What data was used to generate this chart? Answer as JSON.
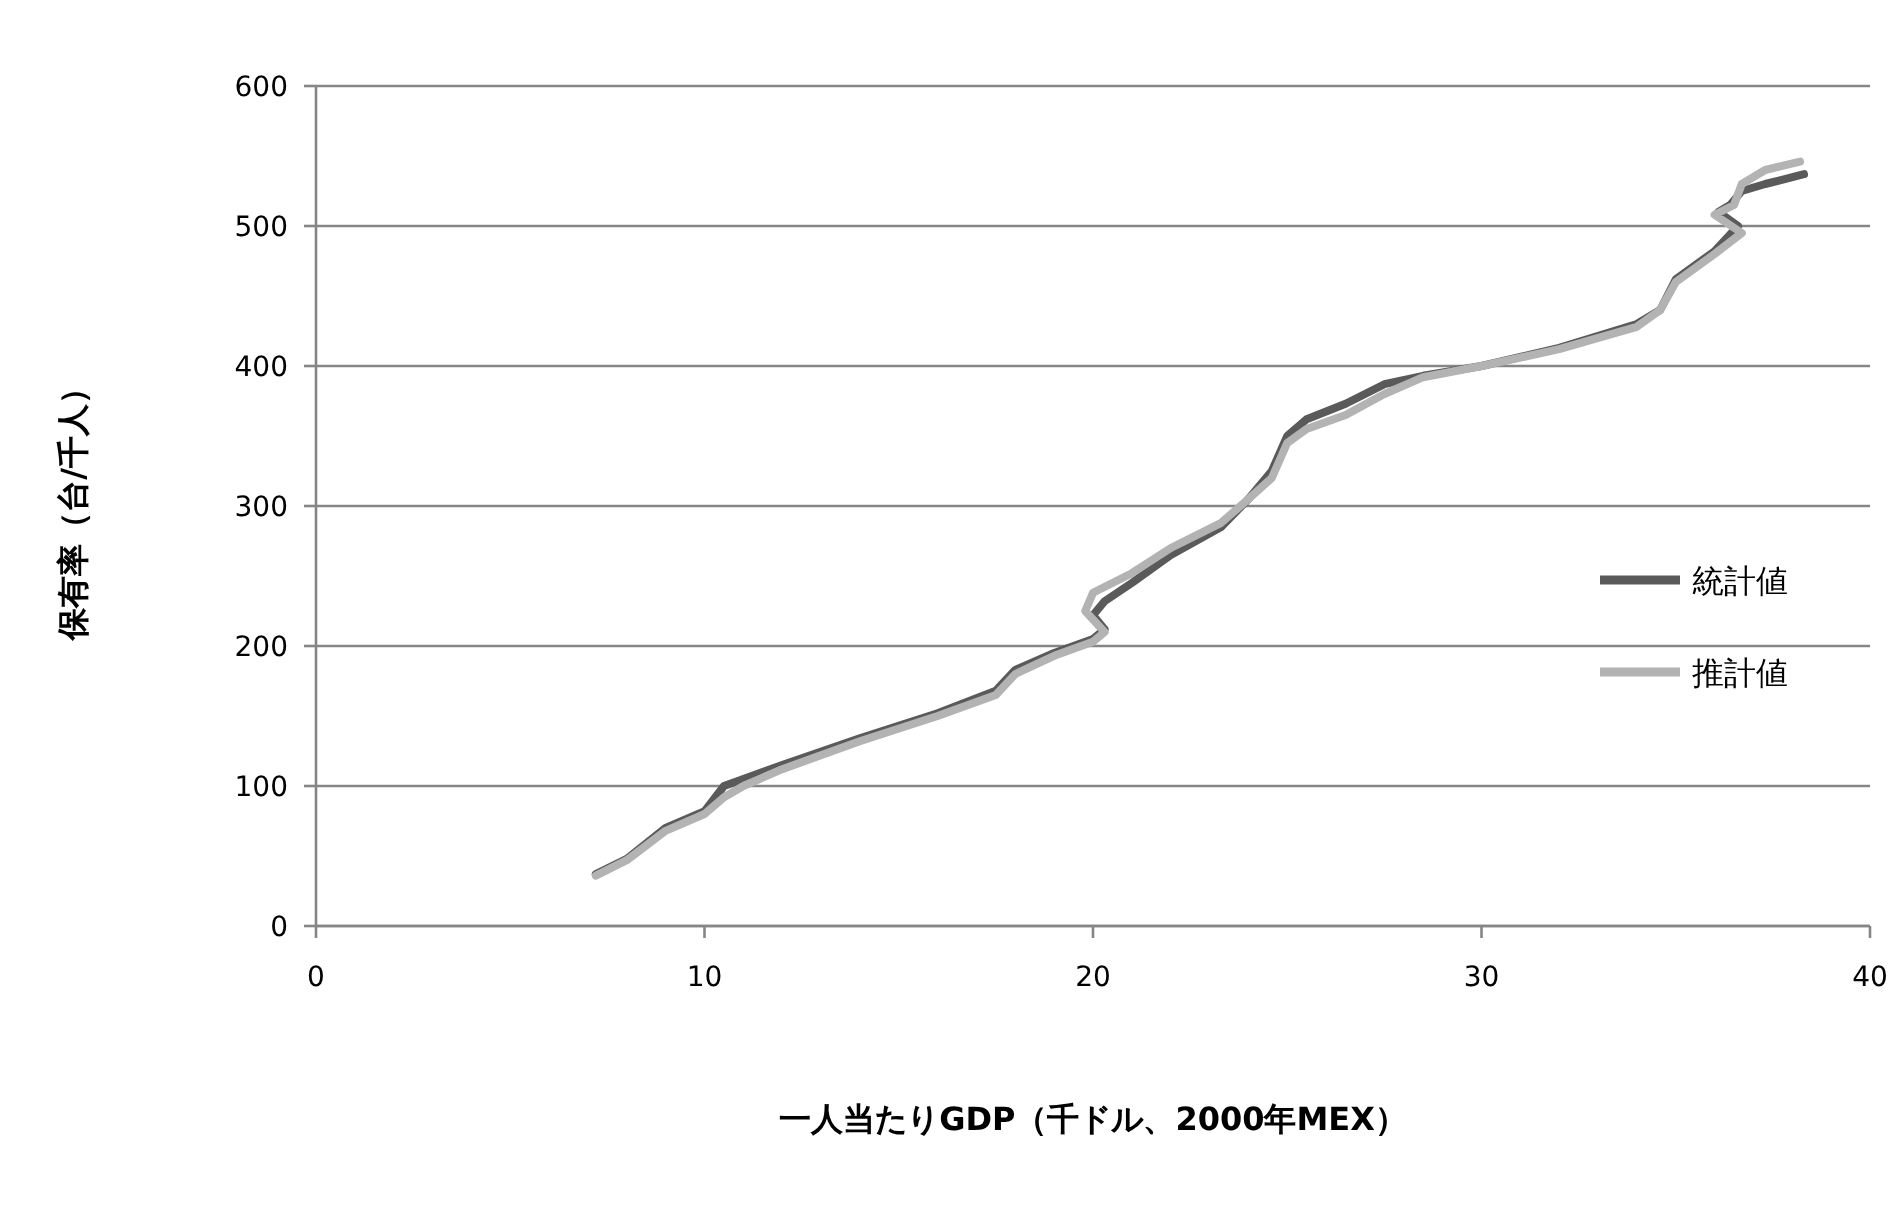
{
  "chart_data": {
    "type": "line",
    "xlabel": "一人当たりGDP（千ドル、2000年MEX）",
    "ylabel": "保有率（台/千人）",
    "xlim": [
      0,
      40
    ],
    "ylim": [
      0,
      600
    ],
    "xticks": [
      0,
      10,
      20,
      30,
      40
    ],
    "yticks": [
      0,
      100,
      200,
      300,
      400,
      500,
      600
    ],
    "grid": "y",
    "legend": "right",
    "marker": "none",
    "line_style": "solid",
    "series": [
      {
        "name": "統計値",
        "color": "#5a5a5a",
        "x": [
          7.2,
          8,
          9,
          10,
          10.5,
          11,
          12,
          14,
          16,
          17.5,
          18,
          19,
          20,
          20.3,
          20,
          20.3,
          21,
          22,
          23.3,
          24,
          24.6,
          25,
          25.5,
          26.5,
          27.5,
          28.5,
          30,
          32,
          34,
          34.6,
          35,
          36,
          36.6,
          36.1,
          36.4,
          36.7,
          37.3,
          38.3
        ],
        "values": [
          37,
          48,
          70,
          82,
          100,
          105,
          115,
          134,
          152,
          168,
          183,
          195,
          205,
          212,
          222,
          232,
          245,
          265,
          285,
          305,
          325,
          350,
          362,
          373,
          387,
          393,
          400,
          413,
          430,
          440,
          462,
          482,
          500,
          510,
          515,
          525,
          530,
          537
        ]
      },
      {
        "name": "推計値",
        "color": "#b3b3b3",
        "x": [
          7.2,
          8,
          9,
          10,
          10.5,
          11,
          12,
          14,
          16,
          17.5,
          18,
          19,
          20,
          20.3,
          19.8,
          20,
          21,
          22,
          23.3,
          24,
          24.6,
          25,
          25.5,
          26.5,
          27.5,
          28.5,
          30,
          32,
          34,
          34.6,
          35,
          36,
          36.7,
          36,
          36.5,
          36.7,
          37.3,
          38.2
        ],
        "values": [
          36,
          47,
          68,
          80,
          92,
          100,
          112,
          132,
          150,
          165,
          180,
          193,
          203,
          210,
          225,
          238,
          252,
          270,
          288,
          305,
          320,
          345,
          355,
          365,
          380,
          392,
          400,
          412,
          428,
          440,
          460,
          480,
          495,
          508,
          515,
          530,
          540,
          546
        ]
      }
    ]
  }
}
